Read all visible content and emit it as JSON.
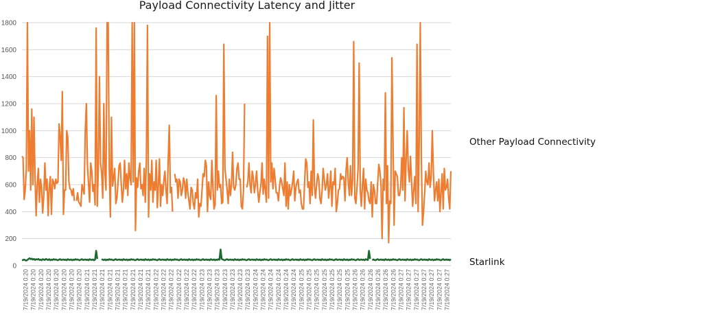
{
  "chart_data": {
    "type": "line",
    "title": "Payload Connectivity Latency and Jitter",
    "xlabel": "",
    "ylabel": "",
    "ylim": [
      0,
      1800
    ],
    "yticks": [
      0,
      200,
      400,
      600,
      800,
      1000,
      1200,
      1400,
      1600,
      1800
    ],
    "grid": true,
    "legend": "right, inline labels",
    "xtick_labels": [
      "7/19/2024 0:20",
      "7/19/2024 0:20",
      "7/19/2024 0:20",
      "7/19/2024 0:20",
      "7/19/2024 0:20",
      "7/19/2024 0:20",
      "7/19/2024 0:20",
      "7/19/2024 0:20",
      "7/19/2024 0:21",
      "7/19/2024 0:21",
      "7/19/2024 0:21",
      "7/19/2024 0:21",
      "7/19/2024 0:21",
      "7/19/2024 0:21",
      "7/19/2024 0:21",
      "7/19/2024 0:21",
      "7/19/2024 0:21",
      "7/19/2024 0:22",
      "7/19/2024 0:22",
      "7/19/2024 0:22",
      "7/19/2024 0:22",
      "7/19/2024 0:22",
      "7/19/2024 0:22",
      "7/19/2024 0:23",
      "7/19/2024 0:23",
      "7/19/2024 0:23",
      "7/19/2024 0:23",
      "7/19/2024 0:23",
      "7/19/2024 0:23",
      "7/19/2024 0:23",
      "7/19/2024 0:24",
      "7/19/2024 0:24",
      "7/19/2024 0:24",
      "7/19/2024 0:24",
      "7/19/2024 0:24",
      "7/19/2024 0:24",
      "7/19/2024 0:25",
      "7/19/2024 0:25",
      "7/19/2024 0:25",
      "7/19/2024 0:25",
      "7/19/2024 0:25",
      "7/19/2024 0:25",
      "7/19/2024 0:25",
      "7/19/2024 0:26",
      "7/19/2024 0:26",
      "7/19/2024 0:26",
      "7/19/2024 0:26",
      "7/19/2024 0:26",
      "7/19/2024 0:26",
      "7/19/2024 0:27",
      "7/19/2024 0:27",
      "7/19/2024 0:27",
      "7/19/2024 0:27",
      "7/19/2024 0:27",
      "7/19/2024 0:27",
      "7/19/2024 0:27"
    ],
    "series": [
      {
        "name": "Other Payload Connectivity",
        "color": "#ed7d31",
        "values": [
          810,
          800,
          490,
          560,
          720,
          1800,
          700,
          1000,
          560,
          1160,
          600,
          1100,
          660,
          370,
          600,
          720,
          470,
          640,
          580,
          390,
          520,
          760,
          560,
          640,
          370,
          580,
          660,
          380,
          640,
          620,
          570,
          640,
          610,
          620,
          1050,
          960,
          780,
          1290,
          380,
          560,
          560,
          1000,
          950,
          620,
          570,
          560,
          520,
          570,
          480,
          null,
          480,
          540,
          470,
          460,
          440,
          600,
          560,
          530,
          1000,
          1200,
          740,
          610,
          470,
          760,
          700,
          550,
          600,
          450,
          1760,
          440,
          720,
          1400,
          760,
          690,
          500,
          1200,
          690,
          560,
          1800,
          1800,
          720,
          360,
          1100,
          590,
          650,
          720,
          460,
          500,
          610,
          740,
          760,
          600,
          470,
          560,
          780,
          570,
          680,
          520,
          760,
          650,
          600,
          1800,
          620,
          1800,
          260,
          650,
          580,
          700,
          760,
          570,
          600,
          520,
          720,
          470,
          780,
          1780,
          360,
          680,
          560,
          780,
          470,
          620,
          560,
          780,
          430,
          600,
          790,
          440,
          600,
          520,
          630,
          700,
          560,
          460,
          780,
          1040,
          540,
          580,
          400,
          null,
          680,
          620,
          640,
          500,
          640,
          620,
          520,
          560,
          650,
          620,
          500,
          640,
          540,
          480,
          420,
          580,
          560,
          460,
          420,
          540,
          500,
          640,
          360,
          460,
          440,
          560,
          680,
          660,
          780,
          740,
          400,
          620,
          520,
          490,
          780,
          580,
          420,
          450,
          1260,
          560,
          700,
          580,
          600,
          460,
          470,
          1640,
          720,
          640,
          560,
          460,
          640,
          520,
          600,
          840,
          580,
          560,
          600,
          720,
          760,
          640,
          640,
          440,
          420,
          560,
          1200,
          null,
          580,
          620,
          760,
          600,
          540,
          700,
          650,
          540,
          610,
          700,
          560,
          470,
          540,
          600,
          760,
          530,
          640,
          560,
          470,
          1700,
          500,
          1800,
          620,
          760,
          570,
          720,
          640,
          540,
          540,
          480,
          590,
          650,
          620,
          570,
          520,
          760,
          440,
          620,
          420,
          600,
          520,
          560,
          620,
          700,
          480,
          580,
          620,
          640,
          540,
          560,
          460,
          420,
          420,
          620,
          790,
          760,
          580,
          620,
          460,
          700,
          520,
          1080,
          590,
          500,
          600,
          680,
          640,
          500,
          460,
          550,
          720,
          640,
          560,
          600,
          680,
          500,
          580,
          700,
          440,
          620,
          600,
          720,
          400,
          460,
          560,
          570,
          680,
          640,
          660,
          650,
          480,
          710,
          800,
          620,
          520,
          740,
          520,
          640,
          1660,
          500,
          460,
          580,
          720,
          1500,
          560,
          440,
          600,
          720,
          420,
          640,
          560,
          540,
          480,
          460,
          620,
          360,
          600,
          560,
          460,
          460,
          620,
          750,
          700,
          600,
          200,
          640,
          560,
          1280,
          460,
          740,
          170,
          480,
          460,
          1540,
          920,
          300,
          700,
          680,
          660,
          520,
          520,
          580,
          800,
          560,
          1170,
          480,
          780,
          1000,
          720,
          620,
          810,
          620,
          440,
          560,
          660,
          460,
          1640,
          400,
          900,
          1800,
          780,
          300,
          400,
          540,
          700,
          620,
          600,
          760,
          580,
          660,
          1000,
          700,
          480,
          560,
          620,
          480,
          640,
          400,
          540,
          680,
          420,
          720,
          560,
          580,
          640,
          500,
          420,
          700
        ]
      },
      {
        "name": "Starlink",
        "color": "#1e6b2e",
        "values": [
          40,
          42,
          45,
          40,
          38,
          42,
          50,
          55,
          48,
          52,
          45,
          50,
          42,
          48,
          45,
          50,
          42,
          45,
          40,
          48,
          45,
          42,
          50,
          45,
          42,
          48,
          40,
          45,
          42,
          48,
          44,
          46,
          42,
          40,
          45,
          48,
          42,
          44,
          46,
          42,
          45,
          40,
          48,
          44,
          42,
          46,
          40,
          45,
          42,
          48,
          44,
          46,
          42,
          40,
          45,
          48,
          42,
          44,
          46,
          42,
          45,
          40,
          48,
          44,
          42,
          46,
          40,
          45,
          110,
          50,
          null,
          40,
          null,
          48,
          44,
          42,
          46,
          40,
          45,
          42,
          48,
          44,
          46,
          42,
          40,
          45,
          48,
          42,
          44,
          46,
          42,
          45,
          40,
          48,
          44,
          42,
          46,
          40,
          45,
          42,
          48,
          44,
          46,
          42,
          40,
          45,
          48,
          42,
          44,
          46,
          42,
          45,
          40,
          48,
          44,
          42,
          46,
          40,
          45,
          42,
          48,
          44,
          46,
          42,
          40,
          45,
          48,
          42,
          44,
          46,
          42,
          45,
          40,
          48,
          44,
          42,
          46,
          40,
          45,
          42,
          48,
          44,
          46,
          42,
          40,
          45,
          48,
          42,
          44,
          46,
          42,
          45,
          40,
          48,
          44,
          42,
          46,
          40,
          45,
          42,
          48,
          44,
          46,
          42,
          40,
          45,
          48,
          42,
          44,
          46,
          42,
          45,
          40,
          48,
          44,
          42,
          46,
          40,
          45,
          42,
          48,
          44,
          120,
          50,
          46,
          42,
          40,
          45,
          48,
          42,
          44,
          46,
          42,
          45,
          40,
          48,
          44,
          42,
          46,
          40,
          45,
          42,
          48,
          44,
          46,
          42,
          40,
          45,
          48,
          42,
          44,
          46,
          42,
          45,
          40,
          48,
          44,
          42,
          46,
          40,
          45,
          42,
          48,
          44,
          46,
          42,
          40,
          45,
          48,
          42,
          44,
          46,
          42,
          45,
          40,
          48,
          44,
          42,
          46,
          40,
          45,
          42,
          48,
          44,
          46,
          42,
          40,
          45,
          48,
          42,
          44,
          46,
          42,
          45,
          40,
          48,
          44,
          42,
          46,
          40,
          45,
          42,
          48,
          44,
          46,
          42,
          40,
          45,
          48,
          42,
          44,
          46,
          42,
          45,
          40,
          48,
          44,
          42,
          46,
          40,
          45,
          42,
          48,
          44,
          46,
          42,
          40,
          45,
          48,
          42,
          44,
          46,
          42,
          45,
          40,
          48,
          44,
          42,
          46,
          40,
          45,
          42,
          48,
          44,
          46,
          42,
          40,
          45,
          48,
          42,
          44,
          46,
          42,
          45,
          40,
          48,
          44,
          42,
          110,
          50,
          null,
          40,
          46,
          42,
          40,
          45,
          48,
          42,
          44,
          46,
          42,
          45,
          40,
          48,
          44,
          42,
          46,
          40,
          45,
          42,
          48,
          44,
          46,
          42,
          40,
          45,
          48,
          42,
          44,
          46,
          42,
          45,
          40,
          48,
          44,
          42,
          46,
          40,
          45,
          42,
          48,
          44,
          46,
          42,
          40,
          45,
          48,
          42,
          44,
          46,
          42,
          45,
          40,
          48,
          44,
          42,
          46,
          40,
          45,
          42,
          48,
          44,
          46,
          42,
          40,
          45,
          48,
          42,
          44,
          46,
          42,
          45,
          40,
          48
        ]
      }
    ]
  }
}
